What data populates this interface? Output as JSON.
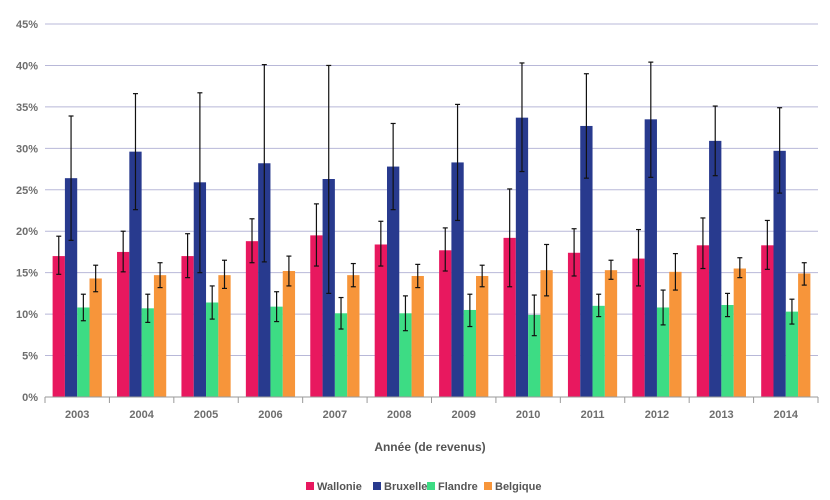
{
  "chart_data": {
    "type": "bar",
    "xlabel": "Année (de revenus)",
    "ylabel": "",
    "ylim": [
      0,
      45
    ],
    "y_tick_step": 5,
    "y_tick_format": "percent",
    "grid": true,
    "legend_position": "bottom",
    "error_bars": true,
    "categories": [
      "2003",
      "2004",
      "2005",
      "2006",
      "2007",
      "2008",
      "2009",
      "2010",
      "2011",
      "2012",
      "2013",
      "2014"
    ],
    "series": [
      {
        "name": "Wallonie",
        "color": "#e8185f",
        "values": [
          17.0,
          17.5,
          17.0,
          18.8,
          19.5,
          18.4,
          17.7,
          19.2,
          17.4,
          16.7,
          18.3,
          18.3
        ],
        "err_low": [
          14.8,
          15.1,
          14.4,
          16.2,
          15.8,
          15.8,
          15.2,
          13.3,
          14.6,
          13.4,
          15.5,
          15.4
        ],
        "err_high": [
          19.4,
          20.0,
          19.7,
          21.5,
          23.3,
          21.2,
          20.4,
          25.1,
          20.3,
          20.2,
          21.6,
          21.3
        ]
      },
      {
        "name": "Bruxelles",
        "color": "#283a8e",
        "values": [
          26.4,
          29.6,
          25.9,
          28.2,
          26.3,
          27.8,
          28.3,
          33.7,
          32.7,
          33.5,
          30.9,
          29.7
        ],
        "err_low": [
          18.9,
          22.6,
          15.0,
          16.3,
          12.5,
          22.6,
          21.3,
          27.2,
          26.4,
          26.5,
          26.7,
          24.6
        ],
        "err_high": [
          33.9,
          36.6,
          36.7,
          40.1,
          40.0,
          33.0,
          35.3,
          40.3,
          39.0,
          40.4,
          35.1,
          34.9
        ]
      },
      {
        "name": "Flandre",
        "color": "#3ddc84",
        "values": [
          10.8,
          10.7,
          11.4,
          10.9,
          10.1,
          10.1,
          10.5,
          9.9,
          11.0,
          10.8,
          11.1,
          10.3
        ],
        "err_low": [
          9.2,
          9.0,
          9.4,
          9.1,
          8.2,
          8.0,
          8.5,
          7.4,
          9.7,
          8.7,
          9.7,
          8.8
        ],
        "err_high": [
          12.4,
          12.4,
          13.4,
          12.7,
          12.0,
          12.2,
          12.4,
          12.3,
          12.4,
          12.9,
          12.5,
          11.8
        ]
      },
      {
        "name": "Belgique",
        "color": "#f7953a",
        "values": [
          14.3,
          14.7,
          14.7,
          15.2,
          14.7,
          14.6,
          14.6,
          15.3,
          15.3,
          15.1,
          15.5,
          14.9
        ],
        "err_low": [
          12.7,
          13.2,
          13.1,
          13.4,
          13.3,
          13.2,
          13.3,
          12.2,
          14.2,
          12.9,
          14.4,
          13.5
        ],
        "err_high": [
          15.9,
          16.2,
          16.5,
          17.0,
          16.1,
          16.0,
          15.9,
          18.4,
          16.5,
          17.3,
          16.8,
          16.2
        ]
      }
    ]
  }
}
